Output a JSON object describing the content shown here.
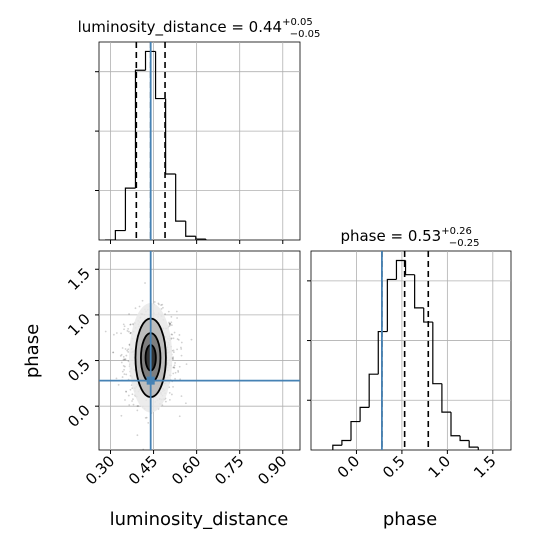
{
  "chart_data": {
    "type": "corner",
    "parameters": [
      "luminosity_distance",
      "phase"
    ],
    "grid": true,
    "truth_color": "#4682b4",
    "panels": [
      {
        "type": "histogram",
        "parameter": "luminosity_distance",
        "title": {
          "base": "luminosity_distance = 0.44",
          "sup": "+0.05",
          "sub": "−0.05"
        },
        "xlim": [
          0.26,
          0.96
        ],
        "ylim": [
          0,
          0.21
        ],
        "bins": [
          {
            "x0": 0.281,
            "x1": 0.317,
            "y": 0.0
          },
          {
            "x0": 0.317,
            "x1": 0.352,
            "y": 0.01
          },
          {
            "x0": 0.352,
            "x1": 0.387,
            "y": 0.055
          },
          {
            "x0": 0.387,
            "x1": 0.422,
            "y": 0.18
          },
          {
            "x0": 0.422,
            "x1": 0.457,
            "y": 0.2
          },
          {
            "x0": 0.457,
            "x1": 0.492,
            "y": 0.15
          },
          {
            "x0": 0.492,
            "x1": 0.527,
            "y": 0.07
          },
          {
            "x0": 0.527,
            "x1": 0.562,
            "y": 0.02
          },
          {
            "x0": 0.562,
            "x1": 0.597,
            "y": 0.004
          },
          {
            "x0": 0.597,
            "x1": 0.632,
            "y": 0.001
          }
        ],
        "quantiles": [
          0.39,
          0.44,
          0.49
        ],
        "truth": 0.44
      },
      {
        "type": "histogram",
        "parameter": "phase",
        "title": {
          "base": "phase = 0.53",
          "sup": "+0.26",
          "sub": "−0.25"
        },
        "xlim": [
          -0.5,
          1.7
        ],
        "ylim": [
          0,
          0.21
        ],
        "bins": [
          {
            "x0": -0.26,
            "x1": -0.16,
            "y": 0.005
          },
          {
            "x0": -0.16,
            "x1": -0.06,
            "y": 0.01
          },
          {
            "x0": -0.06,
            "x1": 0.04,
            "y": 0.03
          },
          {
            "x0": 0.04,
            "x1": 0.14,
            "y": 0.045
          },
          {
            "x0": 0.14,
            "x1": 0.24,
            "y": 0.08
          },
          {
            "x0": 0.24,
            "x1": 0.34,
            "y": 0.125
          },
          {
            "x0": 0.34,
            "x1": 0.44,
            "y": 0.18
          },
          {
            "x0": 0.44,
            "x1": 0.54,
            "y": 0.2
          },
          {
            "x0": 0.54,
            "x1": 0.64,
            "y": 0.185
          },
          {
            "x0": 0.64,
            "x1": 0.74,
            "y": 0.15
          },
          {
            "x0": 0.74,
            "x1": 0.84,
            "y": 0.135
          },
          {
            "x0": 0.84,
            "x1": 0.94,
            "y": 0.07
          },
          {
            "x0": 0.94,
            "x1": 1.04,
            "y": 0.04
          },
          {
            "x0": 1.04,
            "x1": 1.14,
            "y": 0.015
          },
          {
            "x0": 1.14,
            "x1": 1.24,
            "y": 0.01
          },
          {
            "x0": 1.24,
            "x1": 1.34,
            "y": 0.003
          }
        ],
        "quantiles": [
          0.28,
          0.53,
          0.79
        ],
        "truth": 0.28
      },
      {
        "type": "2d-density",
        "x_parameter": "luminosity_distance",
        "y_parameter": "phase",
        "xlim": [
          0.26,
          0.96
        ],
        "ylim": [
          -0.48,
          1.7
        ],
        "center": {
          "x": 0.44,
          "y": 0.53
        },
        "spread": {
          "x": 0.045,
          "y": 0.25
        },
        "contours": [
          {
            "rx": 0.018,
            "ry": 0.14,
            "fill": "#262626"
          },
          {
            "rx": 0.034,
            "ry": 0.27,
            "fill": "#737373"
          },
          {
            "rx": 0.053,
            "ry": 0.43,
            "fill": "#b5b5b5"
          },
          {
            "rx": 0.075,
            "ry": 0.6,
            "fill": "#e9e9e9"
          }
        ],
        "truth": {
          "x": 0.44,
          "y": 0.28
        }
      }
    ],
    "x_ticks": {
      "luminosity_distance": [
        "0.30",
        "0.45",
        "0.60",
        "0.75",
        "0.90"
      ],
      "phase": [
        "0.0",
        "0.5",
        "1.0",
        "1.5"
      ]
    },
    "y_ticks": {
      "phase": [
        "0.0",
        "0.5",
        "1.0",
        "1.5"
      ]
    },
    "xlabels": [
      "luminosity_distance",
      "phase"
    ],
    "ylabel": "phase"
  }
}
